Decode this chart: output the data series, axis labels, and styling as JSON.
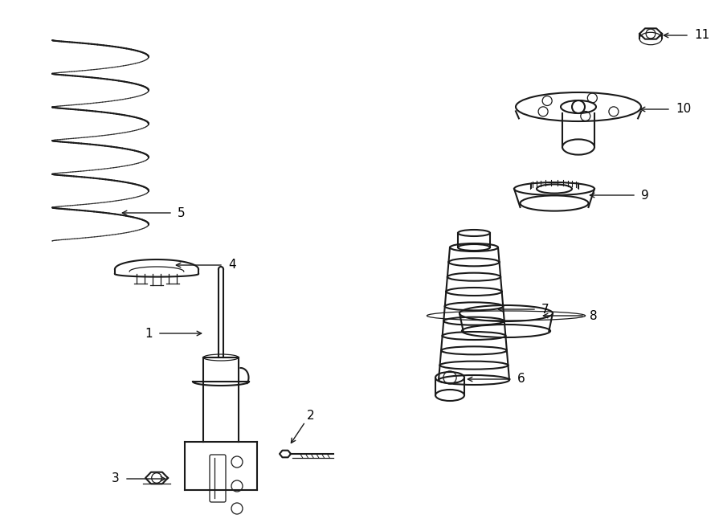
{
  "bg_color": "#ffffff",
  "line_color": "#1a1a1a",
  "label_color": "#000000",
  "fig_width": 9.0,
  "fig_height": 6.61,
  "label_fontsize": 11
}
